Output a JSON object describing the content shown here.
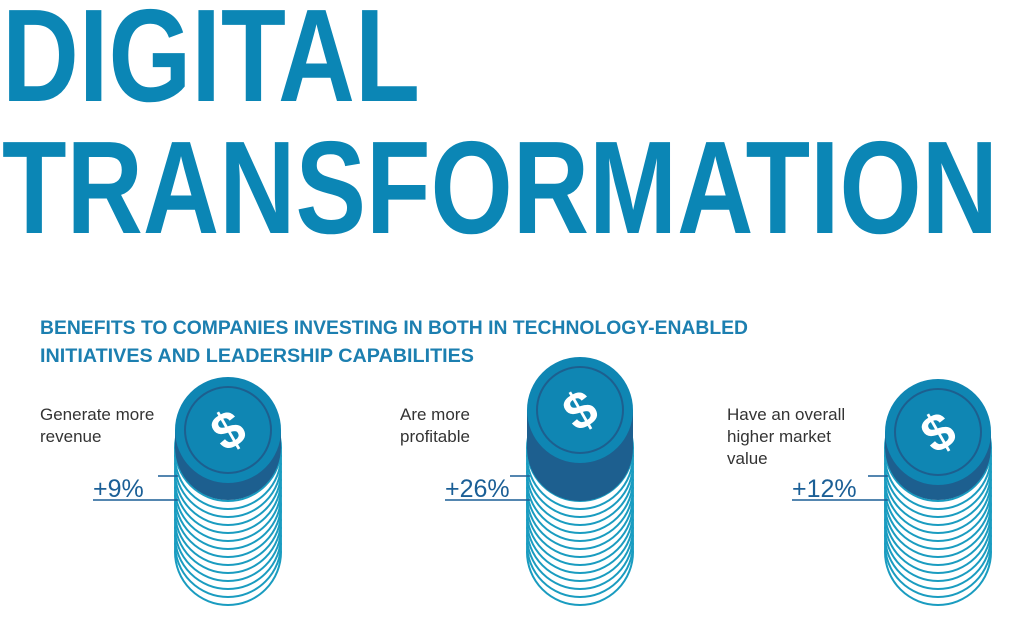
{
  "header": {
    "title_line1": "DIGITAL",
    "title_line2": "TRANSFORMATION"
  },
  "subtitle": {
    "line1": "BENEFITS TO COMPANIES INVESTING IN BOTH IN TECHNOLOGY-ENABLED",
    "line2": "INITIATIVES AND LEADERSHIP CAPABILITIES"
  },
  "items": [
    {
      "label_lines": [
        "Generate more",
        "revenue"
      ],
      "value": "+9%",
      "symbol": "$"
    },
    {
      "label_lines": [
        "Are more",
        "profitable"
      ],
      "value": "+26%",
      "symbol": "$"
    },
    {
      "label_lines": [
        "Have an overall",
        "higher market",
        "value"
      ],
      "value": "+12%",
      "symbol": "$"
    }
  ]
}
